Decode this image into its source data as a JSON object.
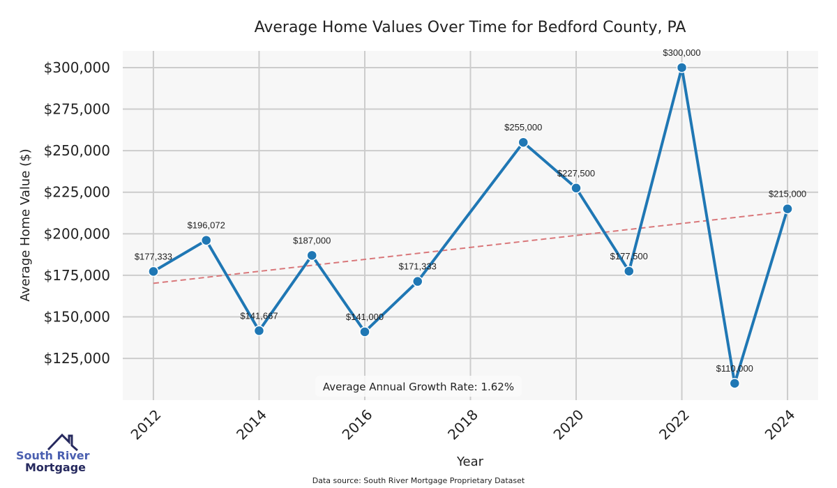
{
  "chart_data": {
    "type": "line",
    "title": "Average Home Values Over Time for Bedford County, PA",
    "xlabel": "Year",
    "ylabel": "Average Home Value ($)",
    "x": [
      2012,
      2013,
      2014,
      2015,
      2016,
      2017,
      2018,
      2019,
      2020,
      2021,
      2022,
      2023,
      2024
    ],
    "series": [
      {
        "name": "Average Home Value",
        "color": "#1f77b4",
        "points": [
          [
            2012,
            177333
          ],
          [
            2013,
            196072
          ],
          [
            2014,
            141667
          ],
          [
            2015,
            187000
          ],
          [
            2016,
            141000
          ],
          [
            2017,
            171333
          ],
          [
            2019,
            255000
          ],
          [
            2020,
            227500
          ],
          [
            2021,
            177500
          ],
          [
            2022,
            300000
          ],
          [
            2023,
            110000
          ],
          [
            2024,
            215000
          ]
        ],
        "labels": [
          "$177,333",
          "$196,072",
          "$141,667",
          "$187,000",
          "$141,000",
          "$171,333",
          "$255,000",
          "$227,500",
          "$177,500",
          "$300,000",
          "$110,000",
          "$215,000"
        ]
      }
    ],
    "trend": {
      "name": "Trend",
      "color": "#d9777a",
      "start": [
        2012,
        170200
      ],
      "end": [
        2024,
        213400
      ]
    },
    "xlim": [
      2011.42,
      2024.58
    ],
    "ylim": [
      99880,
      310050
    ],
    "xticks": [
      2012,
      2014,
      2016,
      2018,
      2020,
      2022,
      2024
    ],
    "xtick_labels": [
      "2012",
      "2014",
      "2016",
      "2018",
      "2020",
      "2022",
      "2024"
    ],
    "yticks": [
      125000,
      150000,
      175000,
      200000,
      225000,
      250000,
      275000,
      300000
    ],
    "ytick_labels": [
      "$125,000",
      "$150,000",
      "$175,000",
      "$200,000",
      "$225,000",
      "$250,000",
      "$275,000",
      "$300,000"
    ],
    "grid": true,
    "annotation": "Average Annual Growth Rate: 1.62%",
    "source": "Data source: South River Mortgage Proprietary Dataset"
  },
  "logo": {
    "line1": "South River",
    "line2": "Mortgage"
  }
}
